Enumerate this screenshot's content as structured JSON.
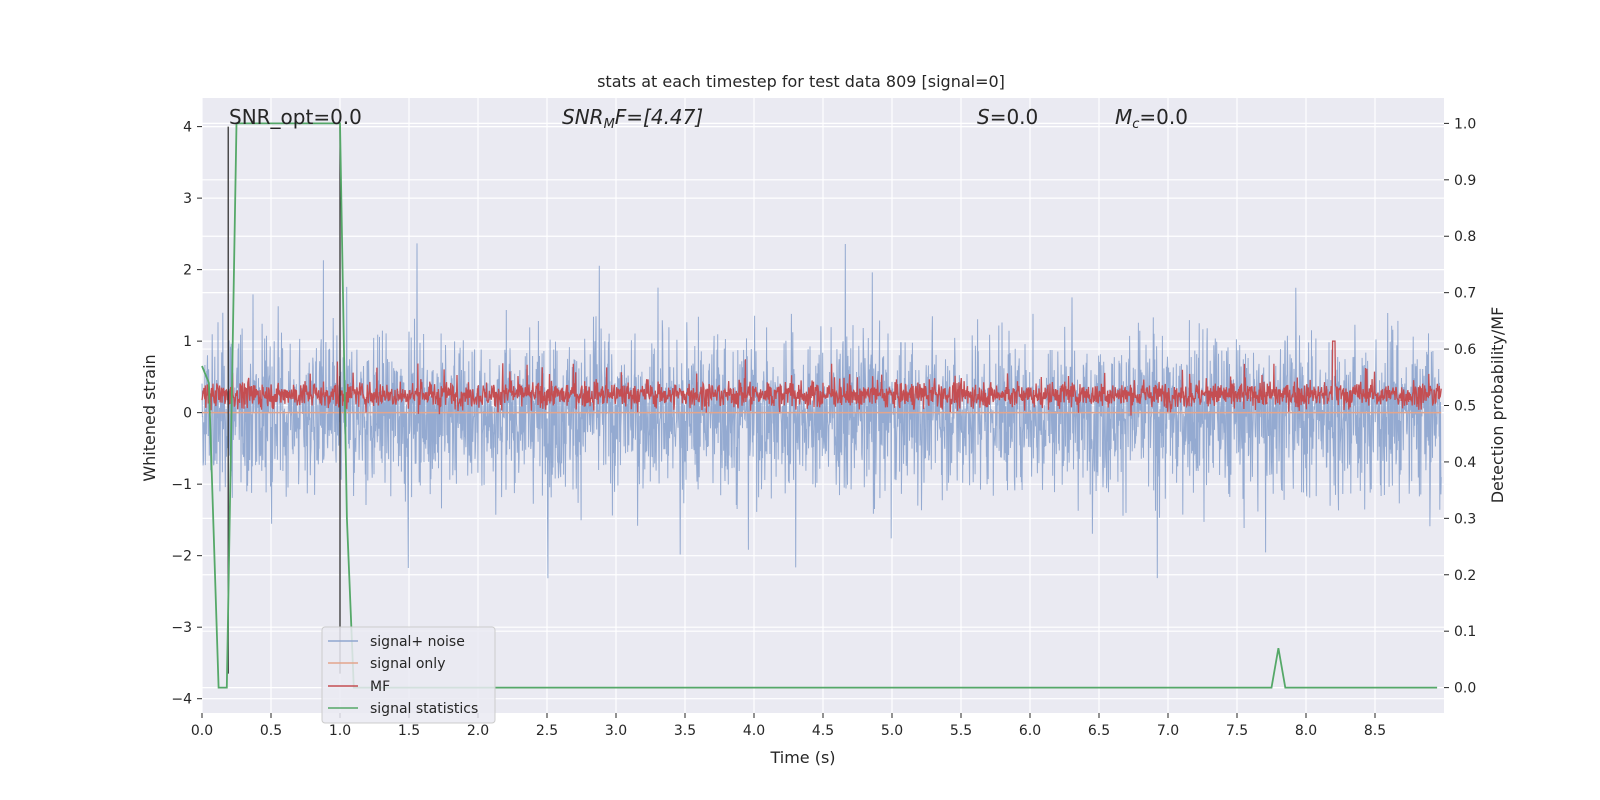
{
  "chart_data": {
    "type": "line",
    "title": "stats at each timestep for test data 809 [signal=0]",
    "xlabel": "Time (s)",
    "ylabel": "Whitened strain",
    "y2label": "Detection probability/MF",
    "xlim": [
      0.0,
      9.0
    ],
    "ylim": [
      -4.2,
      4.4
    ],
    "y2lim": [
      -0.045,
      1.045
    ],
    "xticks": [
      "0.0",
      "0.5",
      "1.0",
      "1.5",
      "2.0",
      "2.5",
      "3.0",
      "3.5",
      "4.0",
      "4.5",
      "5.0",
      "5.5",
      "6.0",
      "6.5",
      "7.0",
      "7.5",
      "8.0",
      "8.5"
    ],
    "yticks": [
      "4",
      "3",
      "2",
      "1",
      "0",
      "−1",
      "−2",
      "−3",
      "−4"
    ],
    "y2ticks": [
      "1.0",
      "0.9",
      "0.8",
      "0.7",
      "0.6",
      "0.5",
      "0.4",
      "0.3",
      "0.2",
      "0.1",
      "0.0"
    ],
    "grid": true,
    "legend_position": "lower-left",
    "annotations": {
      "snr_opt": "SNR_opt=0.0",
      "snr_mf_main": "SNR",
      "snr_mf_sub": "M",
      "snr_mf_rest": "F=[4.47]",
      "s_main": "S",
      "s_rest": "=0.0",
      "mc_main": "M",
      "mc_sub": "c",
      "mc_rest": "=0.0"
    },
    "series": [
      {
        "name": "signal+ noise",
        "color": "#8fa6cf",
        "axis": "left",
        "description_level": {
          "typical_range": [
            -1.5,
            1.5
          ],
          "max": 4.0,
          "min": -3.7
        }
      },
      {
        "name": "signal only",
        "color": "#e3a58c",
        "axis": "left",
        "values_constant": 0.0
      },
      {
        "name": "MF",
        "color": "#c44e52",
        "axis": "left",
        "description_level": {
          "typical_range": [
            0.0,
            0.5
          ],
          "max": 1.0
        }
      },
      {
        "name": "signal statistics",
        "color": "#55a868",
        "axis": "right",
        "x": [
          0.0,
          0.05,
          0.12,
          0.18,
          0.25,
          0.35,
          1.0,
          1.05,
          1.1,
          1.15,
          7.75,
          7.8,
          7.85,
          8.0,
          8.95
        ],
        "values": [
          0.57,
          0.54,
          -0.0,
          0.0,
          1.0,
          1.0,
          1.0,
          0.3,
          0.0,
          0.0,
          0.0,
          0.07,
          0.0,
          0.0,
          0.0
        ]
      }
    ],
    "vlines": [
      {
        "x": 0.19,
        "color": "#333333"
      },
      {
        "x": 1.0,
        "color": "#333333"
      }
    ]
  }
}
